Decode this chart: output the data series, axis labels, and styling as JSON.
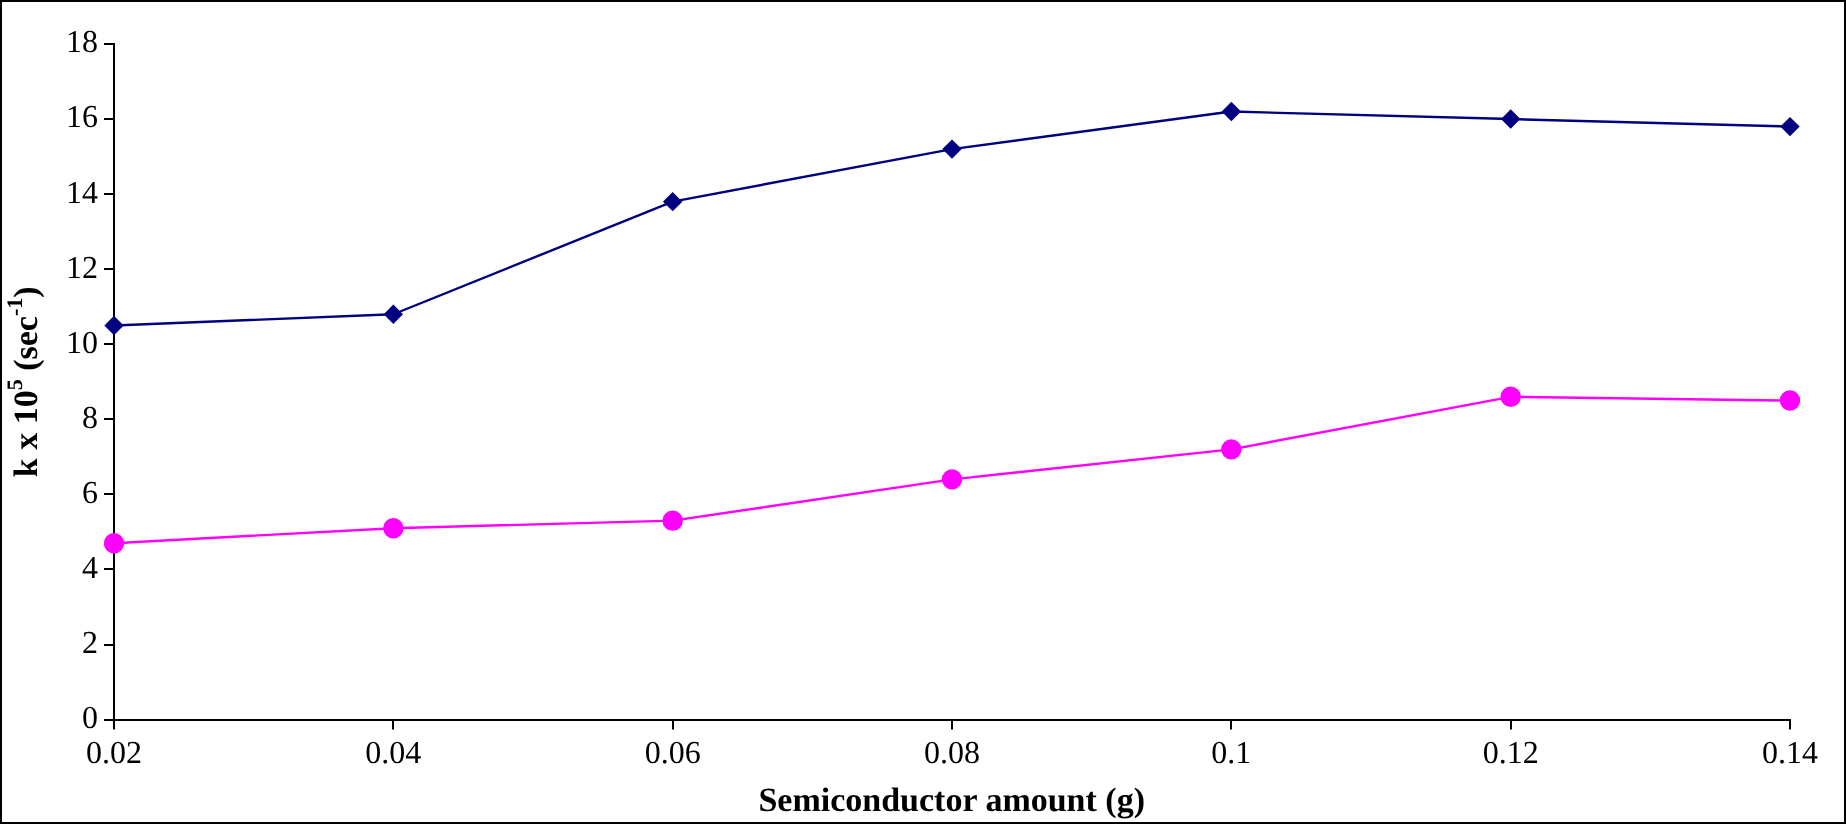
{
  "chart_data": {
    "type": "line",
    "xlabel": "Semiconductor amount (g)",
    "ylabel": "k x 10$^{5}$ (sec$^{-1}$)",
    "x": [
      0.02,
      0.04,
      0.06,
      0.08,
      0.1,
      0.12,
      0.14
    ],
    "series": [
      {
        "color": "#000080",
        "marker": "diamond",
        "values": [
          10.5,
          10.8,
          13.8,
          15.2,
          16.2,
          16.0,
          15.8
        ]
      },
      {
        "color": "#ff00ff",
        "marker": "circle",
        "values": [
          4.7,
          5.1,
          5.3,
          6.4,
          7.2,
          8.6,
          8.5
        ]
      }
    ],
    "xlim": [
      0.02,
      0.14
    ],
    "xticks": [
      0.02,
      0.04,
      0.06,
      0.08,
      0.1,
      0.12,
      0.14
    ],
    "ylim": [
      0,
      18
    ],
    "yticks": [
      0,
      2,
      4,
      6,
      8,
      10,
      12,
      14,
      16,
      18
    ],
    "grid": false,
    "legend": false,
    "line_style": "solid"
  }
}
